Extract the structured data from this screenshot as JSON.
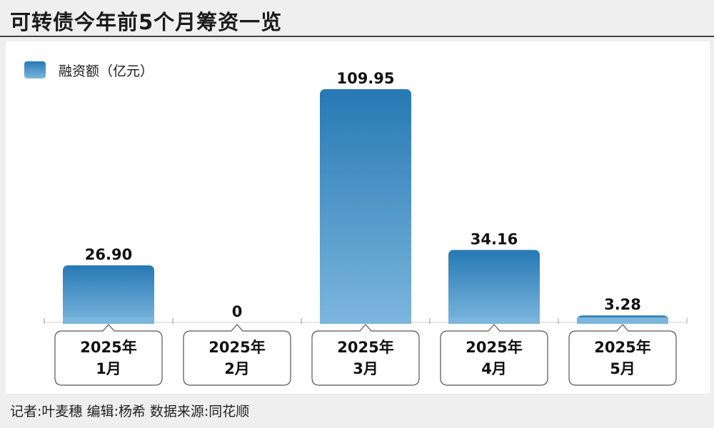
{
  "title": "可转债今年前5个月筹资一览",
  "footer": "记者:叶麦穗  编辑:杨希  数据来源:同花顺",
  "colors": {
    "bar_top": "#2679b4",
    "bar_bottom": "#7cb6de",
    "background": "#efefef",
    "panel": "#ffffff"
  },
  "chart_data": {
    "type": "bar",
    "legend": {
      "label": "融资额（亿元）",
      "position": "top-left"
    },
    "categories": [
      [
        "2025年",
        "1月"
      ],
      [
        "2025年",
        "2月"
      ],
      [
        "2025年",
        "3月"
      ],
      [
        "2025年",
        "4月"
      ],
      [
        "2025年",
        "5月"
      ]
    ],
    "series": [
      {
        "name": "融资额（亿元）",
        "values": [
          26.9,
          0,
          109.95,
          34.16,
          3.28
        ]
      }
    ],
    "value_labels": [
      "26.90",
      "0",
      "109.95",
      "34.16",
      "3.28"
    ],
    "ylim": [
      0,
      115
    ],
    "grid": false
  }
}
